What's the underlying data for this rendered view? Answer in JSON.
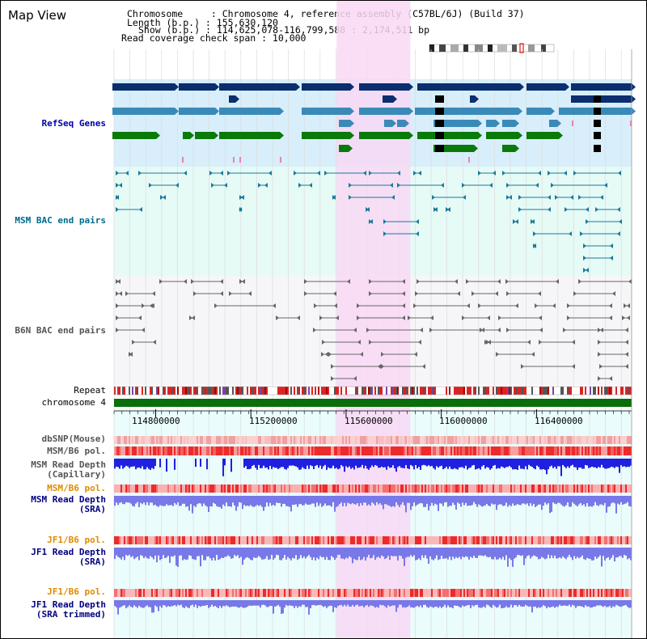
{
  "view_title": "Map View",
  "info": {
    "chromosome": "Chromosome     : Chromosome 4, reference assembly (C57BL/6J) (Build 37)",
    "length": "Length (b.p.) : 155,630,120",
    "show": "Show (b.p.) : 114,625,078-116,799,588 : 2,174,511 bp",
    "coverage": "Read coverage check span : 10,000"
  },
  "tracks": {
    "refseq": "RefSeq Genes",
    "msm_bac": "MSM BAC end pairs",
    "b6n_bac": "B6N BAC end pairs",
    "repeat": "Repeat",
    "chrom": "chromosome 4",
    "dbsnp": "dbSNP(Mouse)",
    "msm_b6_pol_1": "MSM/B6 pol.",
    "msm_depth_cap_1": "MSM Read Depth",
    "msm_depth_cap_2": "(Capillary)",
    "msm_b6_pol_2": "MSM/B6 pol.",
    "msm_depth_sra_1": "MSM Read Depth",
    "msm_depth_sra_2": "(SRA)",
    "jf1_b6_pol_1": "JF1/B6 pol.",
    "jf1_depth_sra_1": "JF1 Read Depth",
    "jf1_depth_sra_2": "(SRA)",
    "jf1_b6_pol_2": "JF1/B6 pol.",
    "jf1_depth_trim_1": "JF1 Read Depth",
    "jf1_depth_trim_2": "(SRA trimmed)"
  },
  "axis": {
    "ticks": [
      "114800000",
      "115200000",
      "115600000",
      "116000000",
      "116400000"
    ],
    "tick_values": [
      114800000,
      115200000,
      115600000,
      116000000,
      116400000
    ],
    "range": [
      114625078,
      116799588
    ]
  },
  "highlight_region": [
    115560000,
    115870000
  ],
  "colors": {
    "refseq_dark": "#0a2e6e",
    "refseq_mid": "#3a8ab8",
    "refseq_green": "#0a7a0a",
    "refseq_bg": "#d8eefa",
    "msm_bac_color": "#1a7a9a",
    "b6n_bac_color": "#666666",
    "highlight": "#f8d8f4",
    "chromosome_bar": "#0a6e0a",
    "snp_red": "#e03030",
    "depth_blue": "#2020e0",
    "depth_light": "#7878e8"
  }
}
